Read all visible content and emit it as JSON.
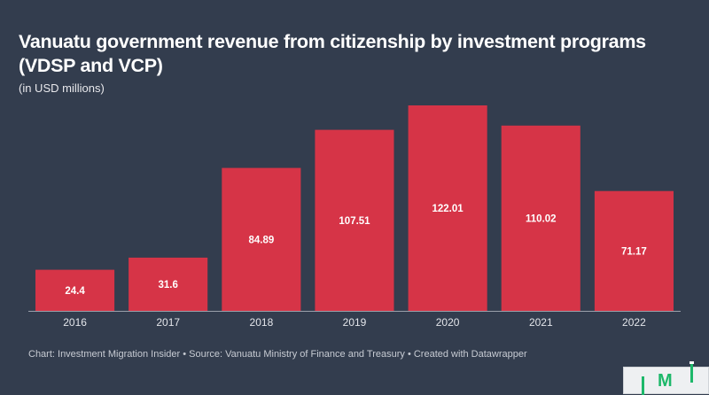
{
  "header": {
    "title": "Vanuatu government revenue from citizenship by investment programs (VDSP and VCP)",
    "subtitle": "(in USD millions)"
  },
  "footer": {
    "text": "Chart: Investment Migration Insider • Source: Vanuatu Ministry of Finance and Treasury • Created with Datawrapper"
  },
  "logo": {
    "letter": "M",
    "name": "IMI logo"
  },
  "colors": {
    "background": "#333d4e",
    "bar": "#d63447",
    "text": "#ffffff",
    "axis": "#9aa0aa"
  },
  "chart_data": {
    "type": "bar",
    "title": "Vanuatu government revenue from citizenship by investment programs (VDSP and VCP)",
    "subtitle": "(in USD millions)",
    "xlabel": "",
    "ylabel": "",
    "categories": [
      "2016",
      "2017",
      "2018",
      "2019",
      "2020",
      "2021",
      "2022"
    ],
    "values": [
      24.4,
      31.6,
      84.89,
      107.51,
      122.01,
      110.02,
      71.17
    ],
    "labels": [
      "24.4",
      "31.6",
      "84.89",
      "107.51",
      "122.01",
      "110.02",
      "71.17"
    ],
    "ylim": [
      0,
      122.01
    ],
    "grid": false,
    "legend": "none",
    "value_labels": "inside-center"
  }
}
